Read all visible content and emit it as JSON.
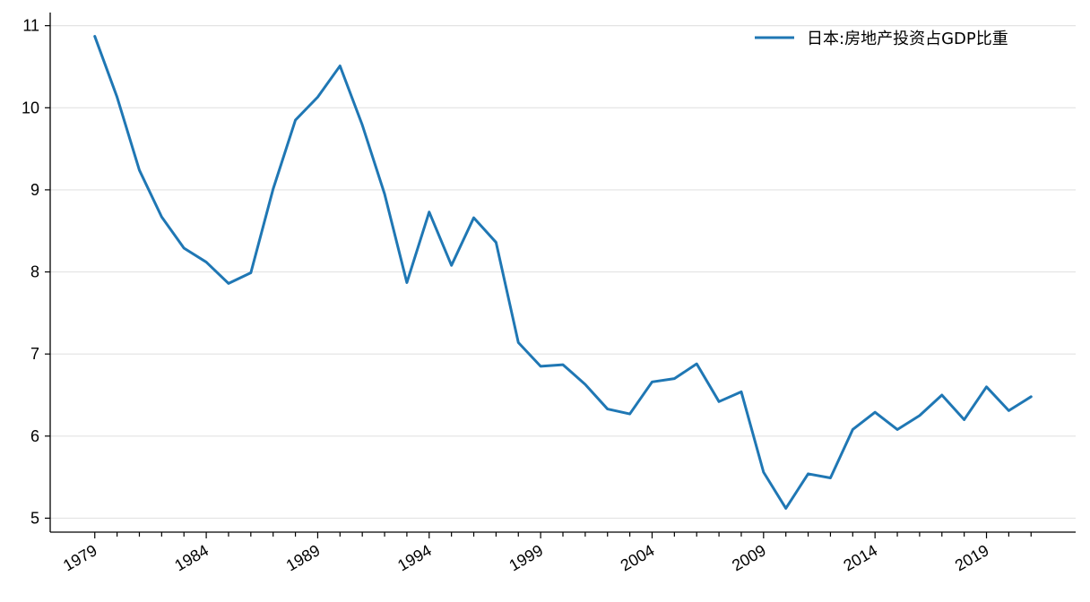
{
  "chart_data": {
    "type": "line",
    "title": "",
    "xlabel": "",
    "ylabel": "",
    "x": [
      1979,
      1980,
      1981,
      1982,
      1983,
      1984,
      1985,
      1986,
      1987,
      1988,
      1989,
      1990,
      1991,
      1992,
      1993,
      1994,
      1995,
      1996,
      1997,
      1998,
      1999,
      2000,
      2001,
      2002,
      2003,
      2004,
      2005,
      2006,
      2007,
      2008,
      2009,
      2010,
      2011,
      2012,
      2013,
      2014,
      2015,
      2016,
      2017,
      2018,
      2019,
      2020,
      2021
    ],
    "xlim": [
      1977,
      2023
    ],
    "xticks": [
      1979,
      1984,
      1989,
      1994,
      1999,
      2004,
      2009,
      2014,
      2019
    ],
    "ylim": [
      4.83,
      11.16
    ],
    "yticks": [
      5,
      6,
      7,
      8,
      9,
      10,
      11
    ],
    "grid": "horizontal",
    "legend_position": "top-right",
    "series": [
      {
        "name": "日本:房地产投资占GDP比重",
        "color": "#1f77b4",
        "values": [
          10.87,
          10.13,
          9.24,
          8.67,
          8.29,
          8.12,
          7.86,
          7.99,
          9.01,
          9.85,
          10.13,
          10.51,
          9.79,
          8.95,
          7.87,
          8.73,
          8.08,
          8.66,
          8.36,
          7.14,
          6.85,
          6.87,
          6.63,
          6.33,
          6.27,
          6.66,
          6.7,
          6.88,
          6.42,
          6.54,
          5.56,
          5.12,
          5.54,
          5.49,
          6.08,
          6.29,
          6.08,
          6.25,
          6.5,
          6.2,
          6.6,
          6.31,
          6.48
        ]
      }
    ]
  }
}
